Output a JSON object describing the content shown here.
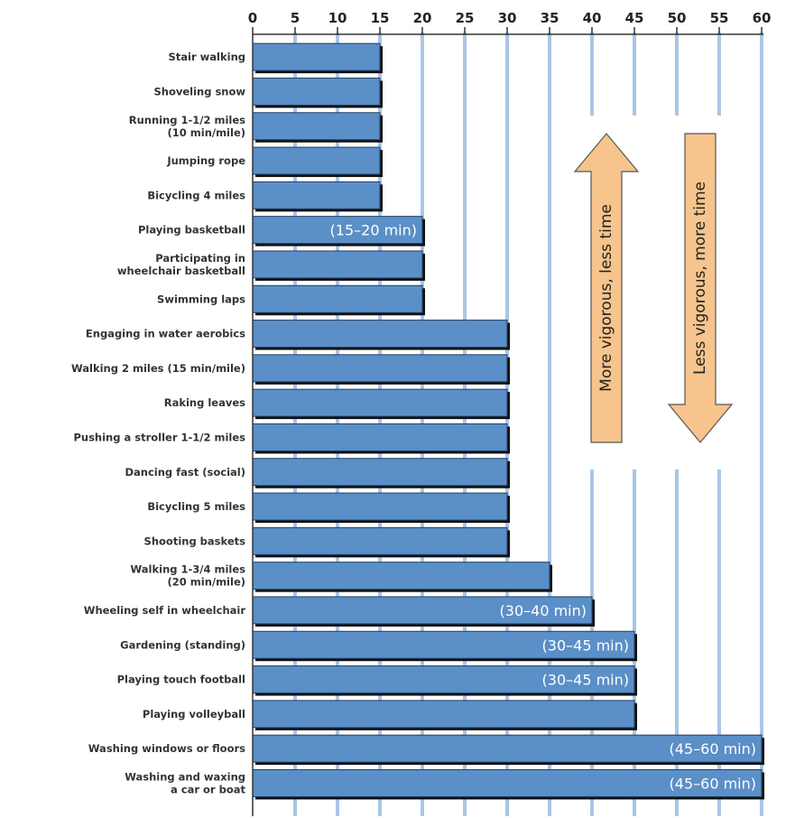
{
  "chart_data": {
    "type": "bar",
    "orientation": "horizontal",
    "title": "",
    "xlabel": "",
    "ylabel": "",
    "xlim": [
      0,
      60
    ],
    "xticks": [
      0,
      5,
      10,
      15,
      20,
      25,
      30,
      35,
      40,
      45,
      50,
      55,
      60
    ],
    "x_axis_position": "top",
    "grid": true,
    "bar_color": "#5b8fc7",
    "grid_color": "#aac6e6",
    "categories": [
      [
        "Stair walking"
      ],
      [
        "Shoveling snow"
      ],
      [
        "Running 1-1/2 miles",
        "(10 min/mile)"
      ],
      [
        "Jumping rope"
      ],
      [
        "Bicycling 4 miles"
      ],
      [
        "Playing basketball"
      ],
      [
        "Participating in",
        "wheelchair basketball"
      ],
      [
        "Swimming laps"
      ],
      [
        "Engaging in water aerobics"
      ],
      [
        "Walking 2 miles (15 min/mile)"
      ],
      [
        "Raking leaves"
      ],
      [
        "Pushing a stroller 1-1/2 miles"
      ],
      [
        "Dancing fast (social)"
      ],
      [
        "Bicycling 5 miles"
      ],
      [
        "Shooting baskets"
      ],
      [
        "Walking 1-3/4 miles",
        "(20 min/mile)"
      ],
      [
        "Wheeling self in wheelchair"
      ],
      [
        "Gardening (standing)"
      ],
      [
        "Playing touch football"
      ],
      [
        "Playing volleyball"
      ],
      [
        "Washing windows or floors"
      ],
      [
        "Washing and waxing",
        "a car or boat"
      ]
    ],
    "values": [
      15,
      15,
      15,
      15,
      15,
      20,
      20,
      20,
      30,
      30,
      30,
      30,
      30,
      30,
      30,
      35,
      40,
      45,
      45,
      45,
      60,
      60
    ],
    "bar_labels": [
      "",
      "",
      "",
      "",
      "",
      "(15–20 min)",
      "",
      "",
      "",
      "",
      "",
      "",
      "",
      "",
      "",
      "",
      "(30–40 min)",
      "(30–45 min)",
      "(30–45 min)",
      "",
      "(45–60 min)",
      "(45–60 min)"
    ],
    "annotations": [
      {
        "text": "More vigorous, less time",
        "direction": "up",
        "color": "#f6c48c"
      },
      {
        "text": "Less vigorous, more time",
        "direction": "down",
        "color": "#f6c48c"
      }
    ]
  }
}
